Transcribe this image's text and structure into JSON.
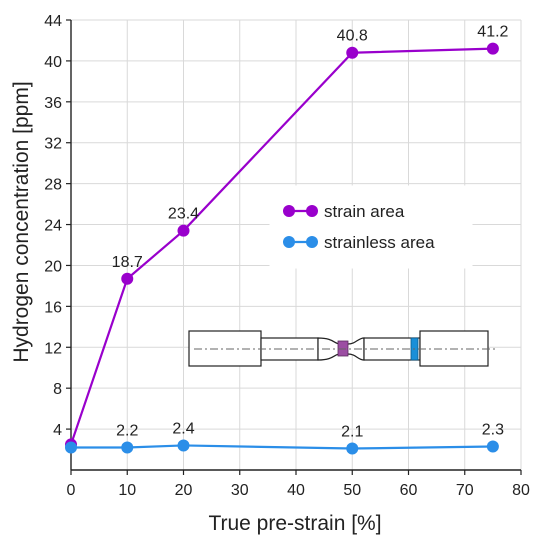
{
  "chart_data": {
    "type": "line",
    "xlabel": "True pre-strain [%]",
    "ylabel": "Hydrogen concentration [ppm]",
    "xlim": [
      0,
      80
    ],
    "ylim": [
      0,
      44
    ],
    "xticks": [
      "0",
      "10",
      "20",
      "30",
      "40",
      "50",
      "60",
      "70",
      "80"
    ],
    "yticks": [
      "4",
      "8",
      "12",
      "16",
      "20",
      "24",
      "28",
      "32",
      "36",
      "40",
      "44"
    ],
    "grid": "on",
    "legend_position": "center-right",
    "series": [
      {
        "name": "strain area",
        "color": "#9900cc",
        "points": [
          {
            "x": 0,
            "y": 2.5,
            "label": ""
          },
          {
            "x": 10,
            "y": 18.7,
            "label": "18.7"
          },
          {
            "x": 20,
            "y": 23.4,
            "label": "23.4"
          },
          {
            "x": 50,
            "y": 40.8,
            "label": "40.8"
          },
          {
            "x": 75,
            "y": 41.2,
            "label": "41.2"
          }
        ]
      },
      {
        "name": "strainless area",
        "color": "#2b8ee8",
        "points": [
          {
            "x": 0,
            "y": 2.2,
            "label": ""
          },
          {
            "x": 10,
            "y": 2.2,
            "label": "2.2"
          },
          {
            "x": 20,
            "y": 2.4,
            "label": "2.4"
          },
          {
            "x": 50,
            "y": 2.1,
            "label": "2.1"
          },
          {
            "x": 75,
            "y": 2.3,
            "label": "2.3"
          }
        ]
      }
    ]
  }
}
